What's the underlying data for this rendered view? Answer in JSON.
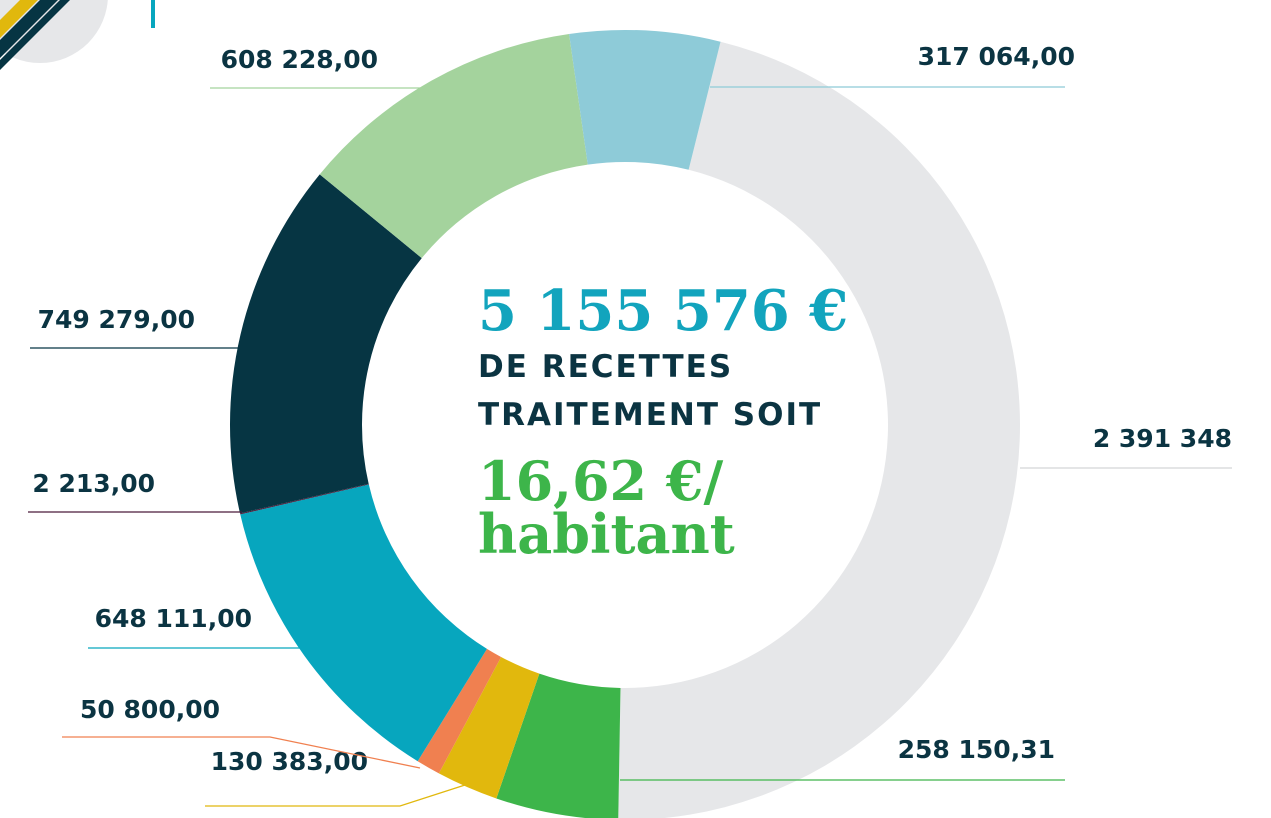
{
  "chart_data": {
    "type": "donut",
    "values": [
      2391348,
      258150.31,
      130383,
      50800,
      648111,
      2213,
      749279,
      608228,
      317064
    ],
    "value_labels": [
      "2 391 348",
      "258 150,31",
      "130 383,00",
      "50 800,00",
      "648 111,00",
      "2 213,00",
      "749 279,00",
      "608 228,00",
      "317 064,00"
    ],
    "colors": [
      "#e6e7e9",
      "#3db54a",
      "#e1b80d",
      "#f08050",
      "#07a6be",
      "#4a1a3a",
      "#063543",
      "#a4d39d",
      "#8ecbd8"
    ],
    "center_text": [
      "5 155 576 €",
      "DE RECETTES",
      "TRAITEMENT SOIT",
      "16,62 €/",
      "habitant"
    ]
  }
}
